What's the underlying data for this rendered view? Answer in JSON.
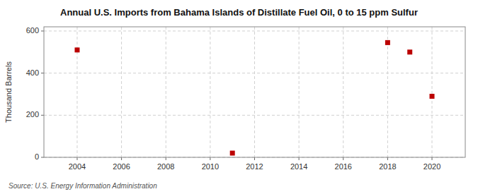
{
  "chart_data": {
    "type": "scatter",
    "title": "Annual U.S. Imports from Bahama Islands of Distillate Fuel Oil, 0 to 15 ppm Sulfur",
    "ylabel": "Thousand Barrels",
    "source": "Source: U.S. Energy Information Administration",
    "x": [
      2004,
      2011,
      2018,
      2019,
      2020
    ],
    "values": [
      510,
      20,
      545,
      500,
      290
    ],
    "color": "#bb0000",
    "marker": "square",
    "xlim": [
      2002.5,
      2021.5
    ],
    "ylim": [
      0,
      620
    ],
    "xticks": [
      2004,
      2006,
      2008,
      2010,
      2012,
      2014,
      2016,
      2018,
      2020
    ],
    "yticks": [
      0,
      200,
      400,
      600
    ],
    "grid": true
  }
}
